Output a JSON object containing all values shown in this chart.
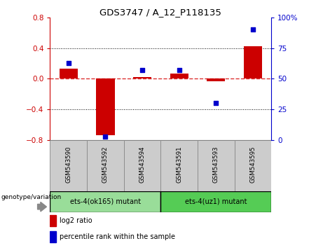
{
  "title": "GDS3747 / A_12_P118135",
  "samples": [
    "GSM543590",
    "GSM543592",
    "GSM543594",
    "GSM543591",
    "GSM543593",
    "GSM543595"
  ],
  "log2_ratio": [
    0.13,
    -0.74,
    0.02,
    0.07,
    -0.03,
    0.42
  ],
  "percentile_rank": [
    63,
    3,
    57,
    57,
    30,
    90
  ],
  "group1_label": "ets-4(ok165) mutant",
  "group2_label": "ets-4(uz1) mutant",
  "group1_indices": [
    0,
    1,
    2
  ],
  "group2_indices": [
    3,
    4,
    5
  ],
  "ylim_left": [
    -0.8,
    0.8
  ],
  "ylim_right": [
    0,
    100
  ],
  "yticks_left": [
    -0.8,
    -0.4,
    0.0,
    0.4,
    0.8
  ],
  "yticks_right": [
    0,
    25,
    50,
    75,
    100
  ],
  "bar_color": "#cc0000",
  "dot_color": "#0000cc",
  "zero_line_color": "#dd3333",
  "grid_color": "#000000",
  "group1_color": "#99dd99",
  "group2_color": "#55cc55",
  "sample_bg_color": "#cccccc",
  "legend_log2_color": "#cc0000",
  "legend_pct_color": "#0000cc",
  "bar_width": 0.5
}
